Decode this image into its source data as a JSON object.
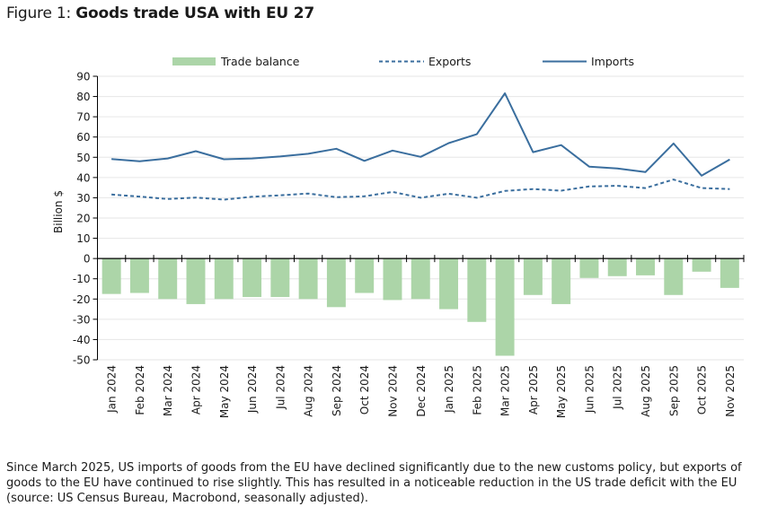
{
  "figure": {
    "prefix": "Figure 1: ",
    "title": "Goods trade USA with EU 27"
  },
  "caption": "Since March 2025, US imports of goods from the EU have declined significantly due to the new customs policy, but exports of goods to the EU have continued to rise slightly. This has resulted in a noticeable reduction in the US trade deficit with the EU (source: US Census Bureau, Macrobond, seasonally adjusted).",
  "colors": {
    "bars": "#acd5a8",
    "lines": "#3a6e9e",
    "grid": "#e6e6e6",
    "axis": "#000000"
  },
  "chart_data": {
    "type": "bar+line",
    "title": "Goods trade USA with EU 27",
    "xlabel": "",
    "ylabel": "Billion $",
    "ylim": [
      -50,
      90
    ],
    "yticks": [
      90,
      80,
      70,
      60,
      50,
      40,
      30,
      20,
      10,
      0,
      -10,
      -20,
      -30,
      -40,
      -50
    ],
    "grid": true,
    "legend_position": "top",
    "categories": [
      "Jan 2024",
      "Feb 2024",
      "Mar 2024",
      "Apr 2024",
      "May 2024",
      "Jun 2024",
      "Jul 2024",
      "Aug 2024",
      "Sep 2024",
      "Oct 2024",
      "Nov 2024",
      "Dec 2024",
      "Jan 2025",
      "Feb 2025",
      "Mar 2025",
      "Apr 2025",
      "May 2025",
      "Jun 2025",
      "Jul 2025",
      "Aug 2025",
      "Sep 2025",
      "Oct 2025",
      "Nov 2025"
    ],
    "series": [
      {
        "name": "Trade balance",
        "type": "bar",
        "values": [
          -17.5,
          -17,
          -20,
          -22.5,
          -20,
          -19,
          -19,
          -20,
          -24,
          -17,
          -20.5,
          -20,
          -25,
          -31.3,
          -48,
          -18,
          -22.5,
          -9.6,
          -8.7,
          -8.3,
          -18,
          -6.5,
          -14.5
        ]
      },
      {
        "name": "Exports",
        "type": "line-dashed",
        "values": [
          31.6,
          30.6,
          29.4,
          30.1,
          29.1,
          30.5,
          31.2,
          32.1,
          30.3,
          30.7,
          32.9,
          30,
          32,
          30,
          33.4,
          34.3,
          33.5,
          35.6,
          35.9,
          34.8,
          39,
          34.8,
          34.3
        ]
      },
      {
        "name": "Imports",
        "type": "line",
        "values": [
          49.1,
          48,
          49.4,
          53,
          49,
          49.4,
          50.4,
          51.7,
          54.2,
          48.2,
          53.3,
          50.2,
          57,
          61.4,
          81.6,
          52.5,
          56,
          45.4,
          44.5,
          42.7,
          56.8,
          40.9,
          48.9
        ]
      }
    ]
  }
}
